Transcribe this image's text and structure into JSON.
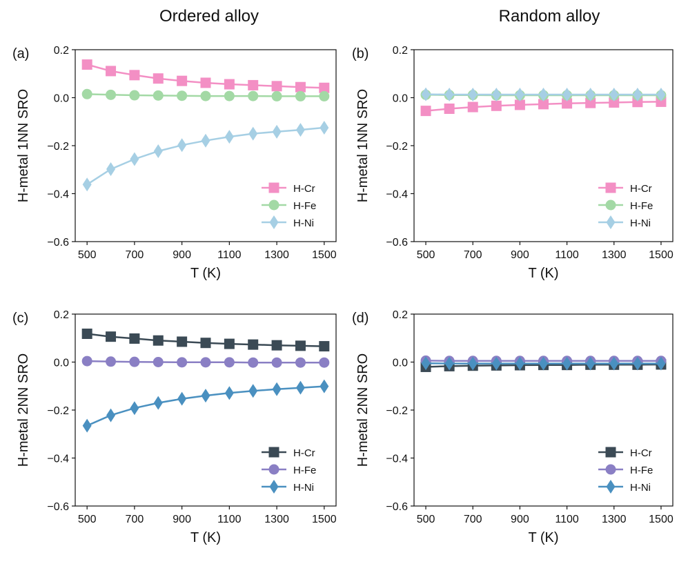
{
  "titles": {
    "left": "Ordered alloy",
    "right": "Random alloy"
  },
  "colors": {
    "H-Cr-1": "#f38fc4",
    "H-Fe-1": "#a3d9a5",
    "H-Ni-1": "#a6cfe4",
    "H-Cr-2": "#3b4a55",
    "H-Fe-2": "#8a7fc4",
    "H-Ni-2": "#4a90c0"
  },
  "chart_data": [
    {
      "type": "line",
      "panel": "(a)",
      "title": "Ordered alloy",
      "xlabel": "T (K)",
      "ylabel": "H-metal 1NN SRO",
      "x": [
        500,
        600,
        700,
        800,
        900,
        1000,
        1100,
        1200,
        1300,
        1400,
        1500
      ],
      "xlim": [
        450,
        1550
      ],
      "ylim": [
        -0.6,
        0.2
      ],
      "xticks": [
        "500",
        "700",
        "900",
        "1100",
        "1300",
        "1500"
      ],
      "yticks": [
        "0.2",
        "0.0",
        "−0.2",
        "−0.4",
        "−0.6"
      ],
      "legend": "lower-right",
      "series": [
        {
          "name": "H-Cr",
          "marker": "square",
          "colorKey": "H-Cr-1",
          "values": [
            0.138,
            0.111,
            0.094,
            0.08,
            0.07,
            0.062,
            0.056,
            0.052,
            0.048,
            0.044,
            0.041
          ]
        },
        {
          "name": "H-Fe",
          "marker": "circle",
          "colorKey": "H-Fe-1",
          "values": [
            0.015,
            0.012,
            0.01,
            0.009,
            0.008,
            0.007,
            0.007,
            0.007,
            0.006,
            0.006,
            0.006
          ]
        },
        {
          "name": "H-Ni",
          "marker": "diamond",
          "colorKey": "H-Ni-1",
          "values": [
            -0.362,
            -0.298,
            -0.256,
            -0.223,
            -0.198,
            -0.179,
            -0.163,
            -0.15,
            -0.142,
            -0.134,
            -0.125
          ]
        }
      ]
    },
    {
      "type": "line",
      "panel": "(b)",
      "title": "Random alloy",
      "xlabel": "T (K)",
      "ylabel": "H-metal 1NN SRO",
      "x": [
        500,
        600,
        700,
        800,
        900,
        1000,
        1100,
        1200,
        1300,
        1400,
        1500
      ],
      "xlim": [
        450,
        1550
      ],
      "ylim": [
        -0.6,
        0.2
      ],
      "xticks": [
        "500",
        "700",
        "900",
        "1100",
        "1300",
        "1500"
      ],
      "yticks": [
        "0.2",
        "0.0",
        "−0.2",
        "−0.4",
        "−0.6"
      ],
      "legend": "lower-right",
      "series": [
        {
          "name": "H-Cr",
          "marker": "square",
          "colorKey": "H-Cr-1",
          "values": [
            -0.055,
            -0.046,
            -0.039,
            -0.034,
            -0.03,
            -0.027,
            -0.024,
            -0.022,
            -0.02,
            -0.018,
            -0.017
          ]
        },
        {
          "name": "H-Fe",
          "marker": "circle",
          "colorKey": "H-Fe-1",
          "values": [
            0.012,
            0.011,
            0.011,
            0.01,
            0.01,
            0.01,
            0.01,
            0.01,
            0.01,
            0.01,
            0.01
          ]
        },
        {
          "name": "H-Ni",
          "marker": "diamond",
          "colorKey": "H-Ni-1",
          "values": [
            0.014,
            0.013,
            0.013,
            0.013,
            0.013,
            0.013,
            0.013,
            0.013,
            0.013,
            0.013,
            0.013
          ]
        }
      ]
    },
    {
      "type": "line",
      "panel": "(c)",
      "xlabel": "T (K)",
      "ylabel": "H-metal 2NN SRO",
      "x": [
        500,
        600,
        700,
        800,
        900,
        1000,
        1100,
        1200,
        1300,
        1400,
        1500
      ],
      "xlim": [
        450,
        1550
      ],
      "ylim": [
        -0.6,
        0.2
      ],
      "xticks": [
        "500",
        "700",
        "900",
        "1100",
        "1300",
        "1500"
      ],
      "yticks": [
        "0.2",
        "0.0",
        "−0.2",
        "−0.4",
        "−0.6"
      ],
      "legend": "lower-right",
      "series": [
        {
          "name": "H-Cr",
          "marker": "square",
          "colorKey": "H-Cr-2",
          "values": [
            0.118,
            0.106,
            0.098,
            0.09,
            0.085,
            0.08,
            0.076,
            0.073,
            0.07,
            0.068,
            0.066
          ]
        },
        {
          "name": "H-Fe",
          "marker": "circle",
          "colorKey": "H-Fe-2",
          "values": [
            0.004,
            0.002,
            0.001,
            0.0,
            -0.001,
            -0.001,
            -0.001,
            -0.002,
            -0.002,
            -0.002,
            -0.002
          ]
        },
        {
          "name": "H-Ni",
          "marker": "diamond",
          "colorKey": "H-Ni-2",
          "values": [
            -0.265,
            -0.222,
            -0.192,
            -0.17,
            -0.153,
            -0.14,
            -0.129,
            -0.12,
            -0.113,
            -0.107,
            -0.101
          ]
        }
      ]
    },
    {
      "type": "line",
      "panel": "(d)",
      "xlabel": "T (K)",
      "ylabel": "H-metal 2NN SRO",
      "x": [
        500,
        600,
        700,
        800,
        900,
        1000,
        1100,
        1200,
        1300,
        1400,
        1500
      ],
      "xlim": [
        450,
        1550
      ],
      "ylim": [
        -0.6,
        0.2
      ],
      "xticks": [
        "500",
        "700",
        "900",
        "1100",
        "1300",
        "1500"
      ],
      "yticks": [
        "0.2",
        "0.0",
        "−0.2",
        "−0.4",
        "−0.6"
      ],
      "legend": "lower-right",
      "series": [
        {
          "name": "H-Cr",
          "marker": "square",
          "colorKey": "H-Cr-2",
          "values": [
            -0.02,
            -0.017,
            -0.015,
            -0.014,
            -0.013,
            -0.012,
            -0.012,
            -0.011,
            -0.011,
            -0.011,
            -0.01
          ]
        },
        {
          "name": "H-Fe",
          "marker": "circle",
          "colorKey": "H-Fe-2",
          "values": [
            0.006,
            0.005,
            0.005,
            0.005,
            0.005,
            0.005,
            0.005,
            0.005,
            0.005,
            0.005,
            0.005
          ]
        },
        {
          "name": "H-Ni",
          "marker": "diamond",
          "colorKey": "H-Ni-2",
          "values": [
            -0.005,
            -0.006,
            -0.006,
            -0.006,
            -0.006,
            -0.006,
            -0.006,
            -0.006,
            -0.006,
            -0.006,
            -0.006
          ]
        }
      ]
    }
  ]
}
